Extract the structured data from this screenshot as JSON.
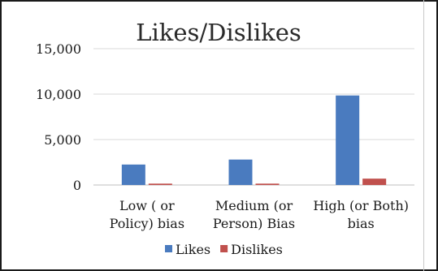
{
  "chart_data": {
    "type": "bar",
    "title": "Likes/Dislikes",
    "xlabel": "",
    "ylabel": "",
    "ylim": [
      0,
      15000
    ],
    "yticks": [
      "0",
      "5,000",
      "10,000",
      "15,000"
    ],
    "ytick_values": [
      0,
      5000,
      10000,
      15000
    ],
    "categories": [
      [
        "Low ( or",
        "Policy) bias"
      ],
      [
        "Medium (or",
        "Person) Bias"
      ],
      [
        "High (or Both)",
        "bias"
      ]
    ],
    "series": [
      {
        "name": "Likes",
        "color": "#4a7bbf",
        "values": [
          2250,
          2800,
          9850
        ]
      },
      {
        "name": "Dislikes",
        "color": "#c0504d",
        "values": [
          150,
          150,
          700
        ]
      }
    ],
    "grid": true,
    "legend": "bottom"
  }
}
